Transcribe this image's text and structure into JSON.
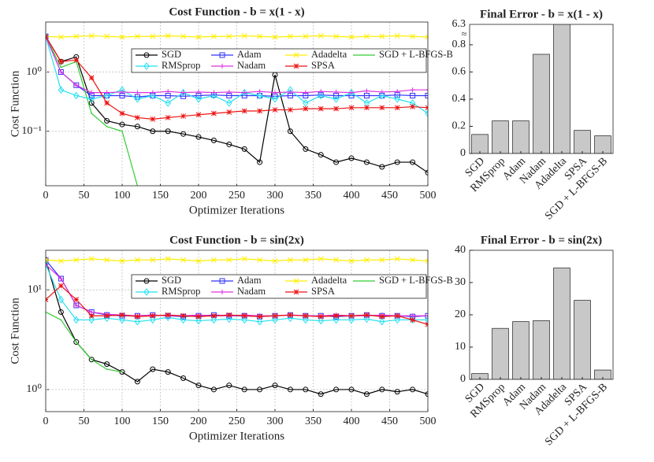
{
  "chart_data": [
    {
      "type": "line",
      "title": "Cost Function - b = x(1 - x)",
      "xlabel": "Optimizer Iterations",
      "ylabel": "Cost Function",
      "ylog": true,
      "grid": true,
      "legend": "upper right",
      "legend_columns": 4,
      "xlim": [
        0,
        500
      ],
      "xticks": [
        0,
        50,
        100,
        150,
        200,
        250,
        300,
        350,
        400,
        450,
        500
      ],
      "ylim": [
        0.012,
        7
      ],
      "yticks": [
        {
          "value": 0.1,
          "label": "10⁻¹"
        },
        {
          "value": 1,
          "label": "10⁰"
        }
      ],
      "x": [
        0,
        20,
        40,
        60,
        80,
        100,
        120,
        140,
        160,
        180,
        200,
        220,
        240,
        260,
        280,
        300,
        320,
        340,
        360,
        380,
        400,
        420,
        440,
        460,
        480,
        500
      ],
      "series": [
        {
          "name": "SGD",
          "color": "#000000",
          "marker": "circle",
          "values": [
            4,
            1.5,
            1.8,
            0.3,
            0.15,
            0.13,
            0.12,
            0.1,
            0.1,
            0.09,
            0.08,
            0.07,
            0.06,
            0.05,
            0.03,
            0.9,
            0.1,
            0.05,
            0.04,
            0.03,
            0.035,
            0.03,
            0.025,
            0.03,
            0.03,
            0.02
          ]
        },
        {
          "name": "Adam",
          "color": "#3333ff",
          "marker": "square",
          "values": [
            4,
            1.0,
            0.6,
            0.4,
            0.4,
            0.4,
            0.38,
            0.4,
            0.4,
            0.39,
            0.4,
            0.41,
            0.4,
            0.4,
            0.4,
            0.39,
            0.4,
            0.4,
            0.41,
            0.4,
            0.4,
            0.4,
            0.4,
            0.41,
            0.4,
            0.4
          ]
        },
        {
          "name": "Adadelta",
          "color": "#ffee00",
          "marker": "cross",
          "values": [
            4,
            3.9,
            4,
            4.1,
            4,
            3.9,
            4,
            4,
            4.1,
            4,
            3.9,
            4,
            4,
            4.1,
            4,
            3.9,
            4,
            4,
            4.1,
            4,
            3.9,
            4,
            4,
            4.1,
            4,
            3.9
          ]
        },
        {
          "name": "SGD + L-BFGS-B",
          "color": "#33cc33",
          "marker": "dot",
          "values": [
            4,
            1.2,
            1.5,
            0.2,
            0.12,
            0.1,
            0.012,
            null,
            null,
            null,
            null,
            null,
            null,
            null,
            null,
            null,
            null,
            null,
            null,
            null,
            null,
            null,
            null,
            null,
            null,
            null
          ]
        },
        {
          "name": "RMSprop",
          "color": "#22e0f0",
          "marker": "diamond",
          "values": [
            4,
            0.5,
            0.4,
            0.35,
            0.4,
            0.5,
            0.35,
            0.4,
            0.3,
            0.45,
            0.35,
            0.4,
            0.3,
            0.45,
            0.4,
            0.35,
            0.5,
            0.3,
            0.4,
            0.35,
            0.45,
            0.3,
            0.4,
            0.35,
            0.3,
            0.2
          ]
        },
        {
          "name": "Nadam",
          "color": "#dd33dd",
          "marker": "plus",
          "values": [
            4,
            1.0,
            0.6,
            0.45,
            0.45,
            0.46,
            0.45,
            0.45,
            0.47,
            0.45,
            0.46,
            0.45,
            0.46,
            0.45,
            0.47,
            0.45,
            0.46,
            0.45,
            0.47,
            0.46,
            0.45,
            0.48,
            0.46,
            0.47,
            0.5,
            0.5
          ]
        },
        {
          "name": "SPSA",
          "color": "#ee1111",
          "marker": "star",
          "values": [
            4,
            1.5,
            1.6,
            0.8,
            0.3,
            0.2,
            0.17,
            0.16,
            0.17,
            0.18,
            0.19,
            0.2,
            0.21,
            0.22,
            0.22,
            0.23,
            0.23,
            0.24,
            0.24,
            0.24,
            0.25,
            0.25,
            0.25,
            0.25,
            0.26,
            0.25
          ]
        }
      ]
    },
    {
      "type": "bar",
      "title": "Final Error - b = x(1 - x)",
      "color": "#c8c8c8",
      "grid": false,
      "categories": [
        "SGD",
        "RMSprop",
        "Adam",
        "Nadam",
        "Adadelta",
        "SPSA",
        "SGD + L-BFGS-B"
      ],
      "values": [
        0.14,
        0.24,
        0.24,
        0.73,
        6.3,
        0.17,
        0.13
      ],
      "ylim": [
        0,
        0.95
      ],
      "yticks": [
        0,
        0.2,
        0.4,
        0.6,
        0.8
      ],
      "axis_break": {
        "top_label": 6.3,
        "symbol": "≈"
      }
    },
    {
      "type": "line",
      "title": "Cost Function - b = sin(2x)",
      "xlabel": "Optimizer Iterations",
      "ylabel": "Cost Function",
      "ylog": true,
      "grid": true,
      "legend": "upper right",
      "legend_columns": 4,
      "xlim": [
        0,
        500
      ],
      "xticks": [
        0,
        50,
        100,
        150,
        200,
        250,
        300,
        350,
        400,
        450,
        500
      ],
      "ylim": [
        0.6,
        25
      ],
      "yticks": [
        {
          "value": 1,
          "label": "10⁰"
        },
        {
          "value": 10,
          "label": "10¹"
        }
      ],
      "x": [
        0,
        20,
        40,
        60,
        80,
        100,
        120,
        140,
        160,
        180,
        200,
        220,
        240,
        260,
        280,
        300,
        320,
        340,
        360,
        380,
        400,
        420,
        440,
        460,
        480,
        500
      ],
      "series": [
        {
          "name": "SGD",
          "color": "#000000",
          "marker": "circle",
          "values": [
            20,
            6,
            3,
            2,
            1.8,
            1.5,
            1.2,
            1.6,
            1.5,
            1.3,
            1.1,
            1.0,
            1.1,
            1.0,
            1.0,
            1.1,
            1.0,
            1.0,
            0.9,
            1.0,
            1.0,
            0.9,
            1.0,
            0.95,
            1.0,
            0.9
          ]
        },
        {
          "name": "Adam",
          "color": "#3333ff",
          "marker": "square",
          "values": [
            20,
            13,
            7,
            6,
            5.6,
            5.5,
            5.5,
            5.6,
            5.5,
            5.4,
            5.5,
            5.6,
            5.5,
            5.5,
            5.4,
            5.5,
            5.6,
            5.5,
            5.5,
            5.4,
            5.5,
            5.6,
            5.5,
            5.5,
            5.4,
            5.5
          ]
        },
        {
          "name": "Adadelta",
          "color": "#ffee00",
          "marker": "cross",
          "values": [
            20,
            19.5,
            20,
            20.5,
            20,
            19.5,
            20,
            20,
            20.5,
            20,
            19.5,
            20,
            20,
            20.5,
            20,
            19.5,
            20,
            20,
            20.5,
            20,
            19.5,
            20,
            20,
            20.5,
            20,
            19.5
          ]
        },
        {
          "name": "SGD + L-BFGS-B",
          "color": "#33cc33",
          "marker": "dot",
          "values": [
            6,
            5,
            3,
            2,
            1.6,
            1.5,
            null,
            null,
            null,
            null,
            null,
            null,
            null,
            null,
            null,
            null,
            null,
            null,
            null,
            null,
            null,
            null,
            null,
            null,
            null,
            null
          ]
        },
        {
          "name": "RMSprop",
          "color": "#22e0f0",
          "marker": "diamond",
          "values": [
            18,
            8,
            5,
            5,
            5.2,
            5,
            4.8,
            5,
            5.3,
            5,
            4.9,
            5,
            5.1,
            5,
            4.8,
            5,
            5.2,
            5,
            4.9,
            5,
            5,
            5.1,
            4.8,
            5,
            5,
            5
          ]
        },
        {
          "name": "Nadam",
          "color": "#dd33dd",
          "marker": "plus",
          "values": [
            18,
            13,
            7,
            6,
            5.7,
            5.6,
            5.5,
            5.6,
            5.5,
            5.5,
            5.6,
            5.5,
            5.5,
            5.6,
            5.5,
            5.5,
            5.6,
            5.5,
            5.5,
            5.6,
            5.5,
            5.5,
            5.6,
            5.5,
            5.5,
            5.5
          ]
        },
        {
          "name": "SPSA",
          "color": "#ee1111",
          "marker": "star",
          "values": [
            8,
            11,
            8,
            5.5,
            5.5,
            5.6,
            5.4,
            5.5,
            5.6,
            5.5,
            5.4,
            5.5,
            5.6,
            5.5,
            5.4,
            5.5,
            5.6,
            5.5,
            5.4,
            5.5,
            5.5,
            5.6,
            5.4,
            5.5,
            5,
            4.5
          ]
        }
      ]
    },
    {
      "type": "bar",
      "title": "Final Error - b = sin(2x)",
      "color": "#c8c8c8",
      "grid": false,
      "categories": [
        "SGD",
        "RMSprop",
        "Adam",
        "Nadam",
        "Adadelta",
        "SPSA",
        "SGD + L-BFGS-B"
      ],
      "values": [
        1.8,
        15.8,
        17.9,
        18.2,
        34.5,
        24.5,
        2.9
      ],
      "ylim": [
        0,
        40
      ],
      "yticks": [
        0,
        10,
        20,
        30,
        40
      ]
    }
  ]
}
